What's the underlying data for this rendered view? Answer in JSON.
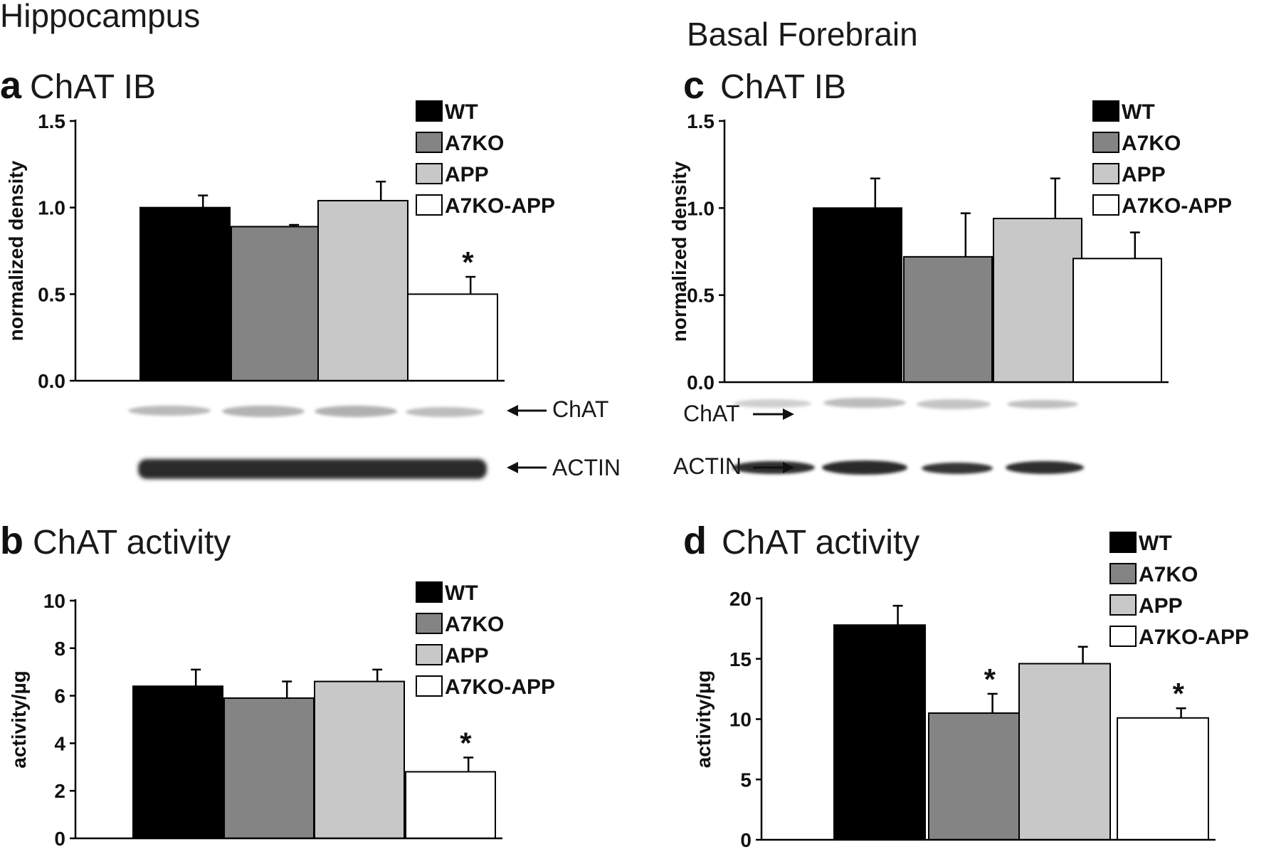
{
  "figure": {
    "region_left": "Hippocampus",
    "region_right": "Basal Forebrain"
  },
  "blots": {
    "hippocampus": {
      "band1": "ChAT",
      "band2": "ACTIN"
    },
    "basal_forebrain": {
      "band1": "ChAT",
      "band2": "ACTIN"
    }
  },
  "colors": {
    "WT": "#000000",
    "A7KO": "#848484",
    "APP": "#c8c8c8",
    "A7KO-APP": "#ffffff"
  },
  "chart_data": [
    {
      "panel": "a",
      "type": "bar",
      "title": "ChAT IB",
      "ylabel": "normalized density",
      "xlabel": "",
      "ylim": [
        0,
        1.5
      ],
      "yticks": [
        "0.0",
        "0.5",
        "1.0",
        "1.5"
      ],
      "categories": [
        "WT",
        "A7KO",
        "APP",
        "A7KO-APP"
      ],
      "values": [
        1.0,
        0.89,
        1.04,
        0.5
      ],
      "errors": [
        0.07,
        0.01,
        0.11,
        0.1
      ],
      "significant": [
        false,
        false,
        false,
        true
      ],
      "legend": [
        "WT",
        "A7KO",
        "APP",
        "A7KO-APP"
      ],
      "legend_position": "top-right",
      "grid": false
    },
    {
      "panel": "b",
      "type": "bar",
      "title": "ChAT activity",
      "ylabel": "activity/µg",
      "xlabel": "",
      "ylim": [
        0,
        10
      ],
      "yticks": [
        "0",
        "2",
        "4",
        "6",
        "8",
        "10"
      ],
      "categories": [
        "WT",
        "A7KO",
        "APP",
        "A7KO-APP"
      ],
      "values": [
        6.4,
        5.9,
        6.6,
        2.8
      ],
      "errors": [
        0.7,
        0.7,
        0.5,
        0.6
      ],
      "significant": [
        false,
        false,
        false,
        true
      ],
      "legend": [
        "WT",
        "A7KO",
        "APP",
        "A7KO-APP"
      ],
      "legend_position": "top-right",
      "grid": false
    },
    {
      "panel": "c",
      "type": "bar",
      "title": "ChAT IB",
      "ylabel": "normalized density",
      "xlabel": "",
      "ylim": [
        0,
        1.5
      ],
      "yticks": [
        "0.0",
        "0.5",
        "1.0",
        "1.5"
      ],
      "categories": [
        "WT",
        "A7KO",
        "APP",
        "A7KO-APP"
      ],
      "values": [
        1.0,
        0.72,
        0.94,
        0.71
      ],
      "errors": [
        0.17,
        0.25,
        0.23,
        0.15
      ],
      "significant": [
        false,
        false,
        false,
        false
      ],
      "legend": [
        "WT",
        "A7KO",
        "APP",
        "A7KO-APP"
      ],
      "legend_position": "top-right",
      "grid": false
    },
    {
      "panel": "d",
      "type": "bar",
      "title": "ChAT activity",
      "ylabel": "activity/µg",
      "xlabel": "",
      "ylim": [
        0,
        20
      ],
      "yticks": [
        "0",
        "5",
        "10",
        "15",
        "20"
      ],
      "categories": [
        "WT",
        "A7KO",
        "APP",
        "A7KO-APP"
      ],
      "values": [
        17.8,
        10.5,
        14.6,
        10.1
      ],
      "errors": [
        1.6,
        1.6,
        1.4,
        0.8
      ],
      "significant": [
        false,
        true,
        false,
        true
      ],
      "legend": [
        "WT",
        "A7KO",
        "APP",
        "A7KO-APP"
      ],
      "legend_position": "top-right",
      "grid": false
    }
  ]
}
